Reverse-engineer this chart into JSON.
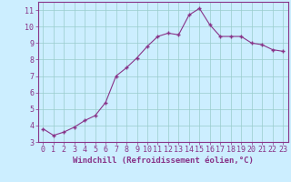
{
  "x": [
    0,
    1,
    2,
    3,
    4,
    5,
    6,
    7,
    8,
    9,
    10,
    11,
    12,
    13,
    14,
    15,
    16,
    17,
    18,
    19,
    20,
    21,
    22,
    23
  ],
  "y": [
    3.8,
    3.4,
    3.6,
    3.9,
    4.3,
    4.6,
    5.4,
    7.0,
    7.5,
    8.1,
    8.8,
    9.4,
    9.6,
    9.5,
    10.7,
    11.1,
    10.1,
    9.4,
    9.4,
    9.4,
    9.0,
    8.9,
    8.6,
    8.5
  ],
  "line_color": "#883388",
  "marker_color": "#883388",
  "bg_color": "#cceeff",
  "grid_color": "#99cccc",
  "xlabel": "Windchill (Refroidissement éolien,°C)",
  "ylim": [
    3,
    11.5
  ],
  "xlim": [
    -0.5,
    23.5
  ],
  "yticks": [
    3,
    4,
    5,
    6,
    7,
    8,
    9,
    10,
    11
  ],
  "xticks": [
    0,
    1,
    2,
    3,
    4,
    5,
    6,
    7,
    8,
    9,
    10,
    11,
    12,
    13,
    14,
    15,
    16,
    17,
    18,
    19,
    20,
    21,
    22,
    23
  ],
  "xlabel_color": "#883388",
  "tick_color": "#883388",
  "border_color": "#883388",
  "axis_label_fontsize": 6.5,
  "tick_fontsize": 6.0
}
